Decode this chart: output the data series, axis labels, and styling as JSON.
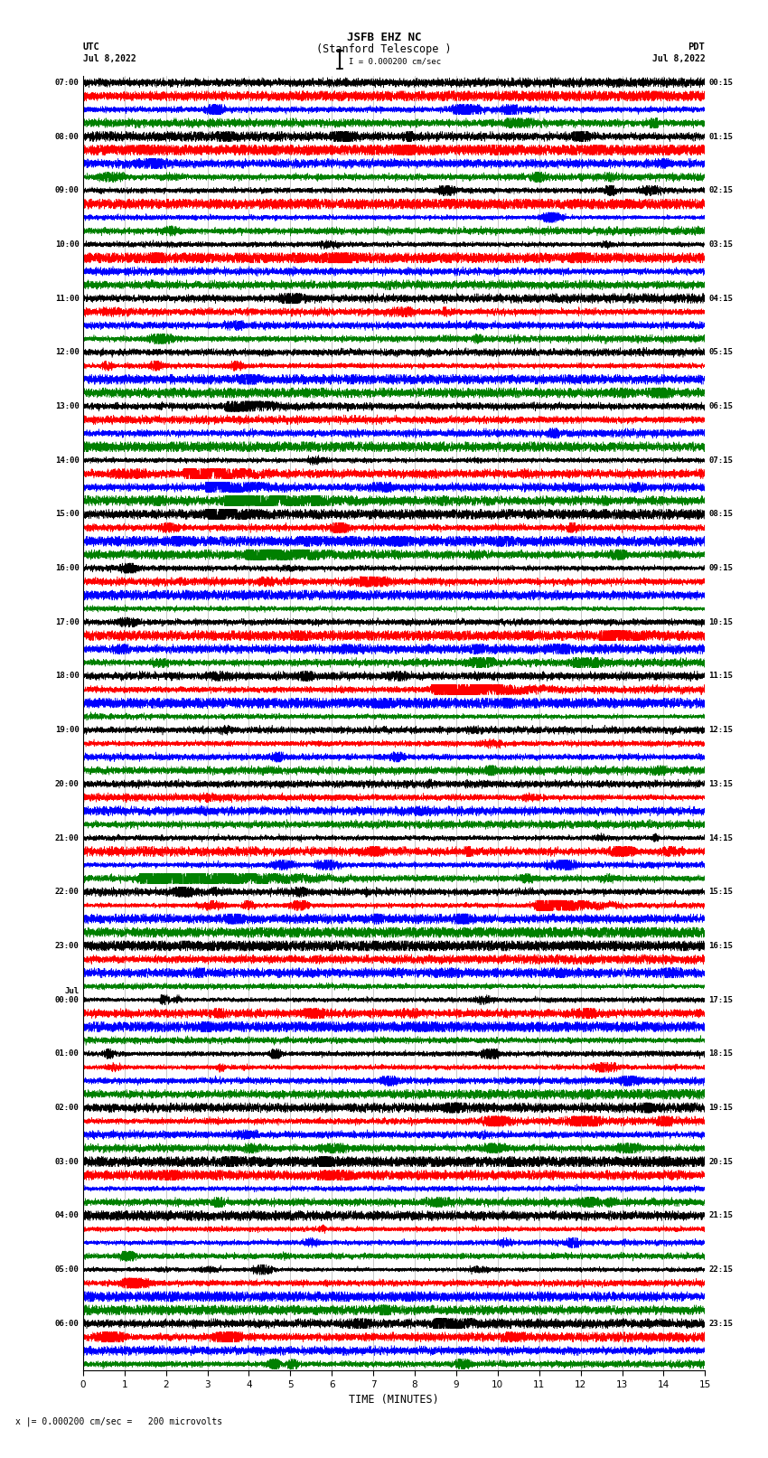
{
  "title_line1": "JSFB EHZ NC",
  "title_line2": "(Stanford Telescope )",
  "scale_label": "I = 0.000200 cm/sec",
  "xlabel": "TIME (MINUTES)",
  "bottom_note": "x |= 0.000200 cm/sec =   200 microvolts",
  "xlim": [
    0,
    15
  ],
  "xticks": [
    0,
    1,
    2,
    3,
    4,
    5,
    6,
    7,
    8,
    9,
    10,
    11,
    12,
    13,
    14,
    15
  ],
  "utc_labels": [
    "07:00",
    "08:00",
    "09:00",
    "10:00",
    "11:00",
    "12:00",
    "13:00",
    "14:00",
    "15:00",
    "16:00",
    "17:00",
    "18:00",
    "19:00",
    "20:00",
    "21:00",
    "22:00",
    "23:00",
    "00:00",
    "01:00",
    "02:00",
    "03:00",
    "04:00",
    "05:00",
    "06:00"
  ],
  "pdt_labels": [
    "00:15",
    "01:15",
    "02:15",
    "03:15",
    "04:15",
    "05:15",
    "06:15",
    "07:15",
    "08:15",
    "09:15",
    "10:15",
    "11:15",
    "12:15",
    "13:15",
    "14:15",
    "15:15",
    "16:15",
    "17:15",
    "18:15",
    "19:15",
    "20:15",
    "21:15",
    "22:15",
    "23:15"
  ],
  "jul_utc_index": 17,
  "bg_color": "white",
  "trace_color_sequence": [
    "black",
    "red",
    "blue",
    "green"
  ],
  "n_hour_groups": 24,
  "traces_per_group": 4,
  "fig_width": 8.5,
  "fig_height": 16.13
}
